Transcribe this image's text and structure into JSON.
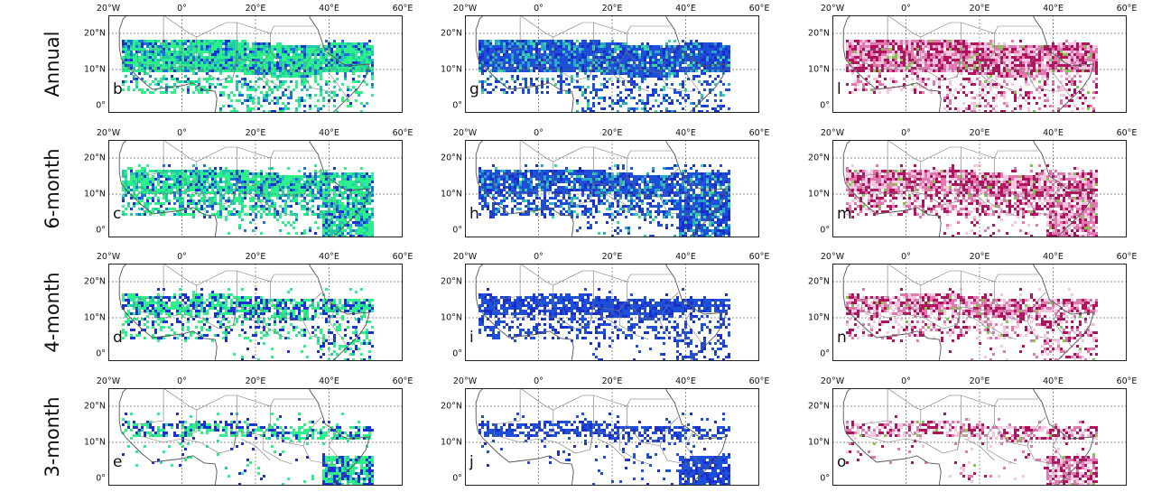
{
  "figure": {
    "rows": [
      {
        "label": "Annual",
        "panels": [
          "b",
          "g",
          "l"
        ]
      },
      {
        "label": "6-month",
        "panels": [
          "c",
          "h",
          "m"
        ]
      },
      {
        "label": "4-month",
        "panels": [
          "d",
          "i",
          "n"
        ]
      },
      {
        "label": "3-month",
        "panels": [
          "e",
          "j",
          "o"
        ]
      }
    ],
    "lon_ticks": [
      "20°W",
      "0°",
      "20°E",
      "40°E",
      "60°E"
    ],
    "lat_ticks": [
      "20°N",
      "10°N",
      "0°"
    ],
    "columns": [
      {
        "palette": [
          "#2ef08a",
          "#22c9a8",
          "#1c6fe0",
          "#1a2fd6"
        ]
      },
      {
        "palette": [
          "#1d4fd8",
          "#1a2fc9",
          "#2aa8c8",
          "#38d6a0"
        ]
      },
      {
        "palette": [
          "#f4c6df",
          "#e079b0",
          "#b0125e",
          "#7ec94a"
        ]
      }
    ],
    "colors": {
      "frame": "#222222",
      "coast": "#555555",
      "grid": "#666666"
    }
  }
}
